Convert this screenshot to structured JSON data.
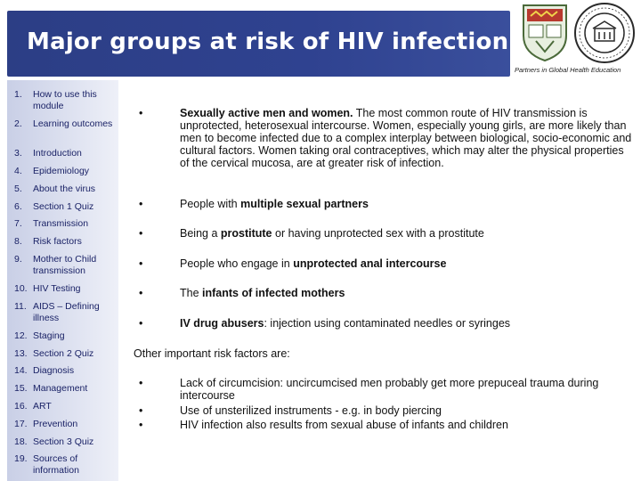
{
  "header": {
    "title": "Major groups at risk of HIV infection",
    "partners_text": "Partners in Global Health Education",
    "logos": [
      "university-crest-icon",
      "college-of-medicine-seal-icon"
    ]
  },
  "sidebar": {
    "items": [
      {
        "num": "1.",
        "label": "How to use this module"
      },
      {
        "num": "2.",
        "label": "Learning outcomes"
      },
      {
        "num": "3.",
        "label": "Introduction"
      },
      {
        "num": "4.",
        "label": "Epidemiology"
      },
      {
        "num": "5.",
        "label": "About the virus"
      },
      {
        "num": "6.",
        "label": "Section 1 Quiz"
      },
      {
        "num": "7.",
        "label": "Transmission"
      },
      {
        "num": "8.",
        "label": "Risk factors"
      },
      {
        "num": "9.",
        "label": "Mother to Child transmission"
      },
      {
        "num": "10.",
        "label": "HIV Testing"
      },
      {
        "num": "11.",
        "label": "AIDS – Defining illness"
      },
      {
        "num": "12.",
        "label": "Staging"
      },
      {
        "num": "13.",
        "label": "Section 2 Quiz"
      },
      {
        "num": "14.",
        "label": "Diagnosis"
      },
      {
        "num": "15.",
        "label": "Management"
      },
      {
        "num": "16.",
        "label": "ART"
      },
      {
        "num": "17.",
        "label": "Prevention"
      },
      {
        "num": "18.",
        "label": "Section 3 Quiz"
      },
      {
        "num": "19.",
        "label": "Sources of information"
      }
    ]
  },
  "main": {
    "bullet_symbol": "•",
    "bullets": [
      {
        "bold": "Sexually active men and women.",
        "pre": "",
        "post": " The most common route of HIV transmission is unprotected, heterosexual intercourse. Women, especially young girls, are more likely than men to become infected due to a complex interplay between biological, socio-economic and cultural factors. Women taking oral contraceptives, which may alter the physical properties of the cervical mucosa, are at greater risk of infection."
      },
      {
        "pre": "People with ",
        "bold": "multiple sexual partners",
        "post": ""
      },
      {
        "pre": "Being a ",
        "bold": "prostitute",
        "post": " or having unprotected sex with a prostitute"
      },
      {
        "pre": "People who engage in ",
        "bold": "unprotected anal intercourse",
        "post": ""
      },
      {
        "pre": "The ",
        "bold": "infants of infected mothers",
        "post": ""
      },
      {
        "pre": "",
        "bold": "IV drug abusers",
        "post": ": injection using contaminated needles or syringes"
      }
    ],
    "other_heading": "Other important risk factors are:",
    "other_factors": [
      "Lack of circumcision: uncircumcised men probably get more prepuceal trauma during intercourse",
      "Use of unsterilized instruments - e.g. in body piercing",
      "HIV infection also results from sexual abuse of infants and children"
    ]
  }
}
